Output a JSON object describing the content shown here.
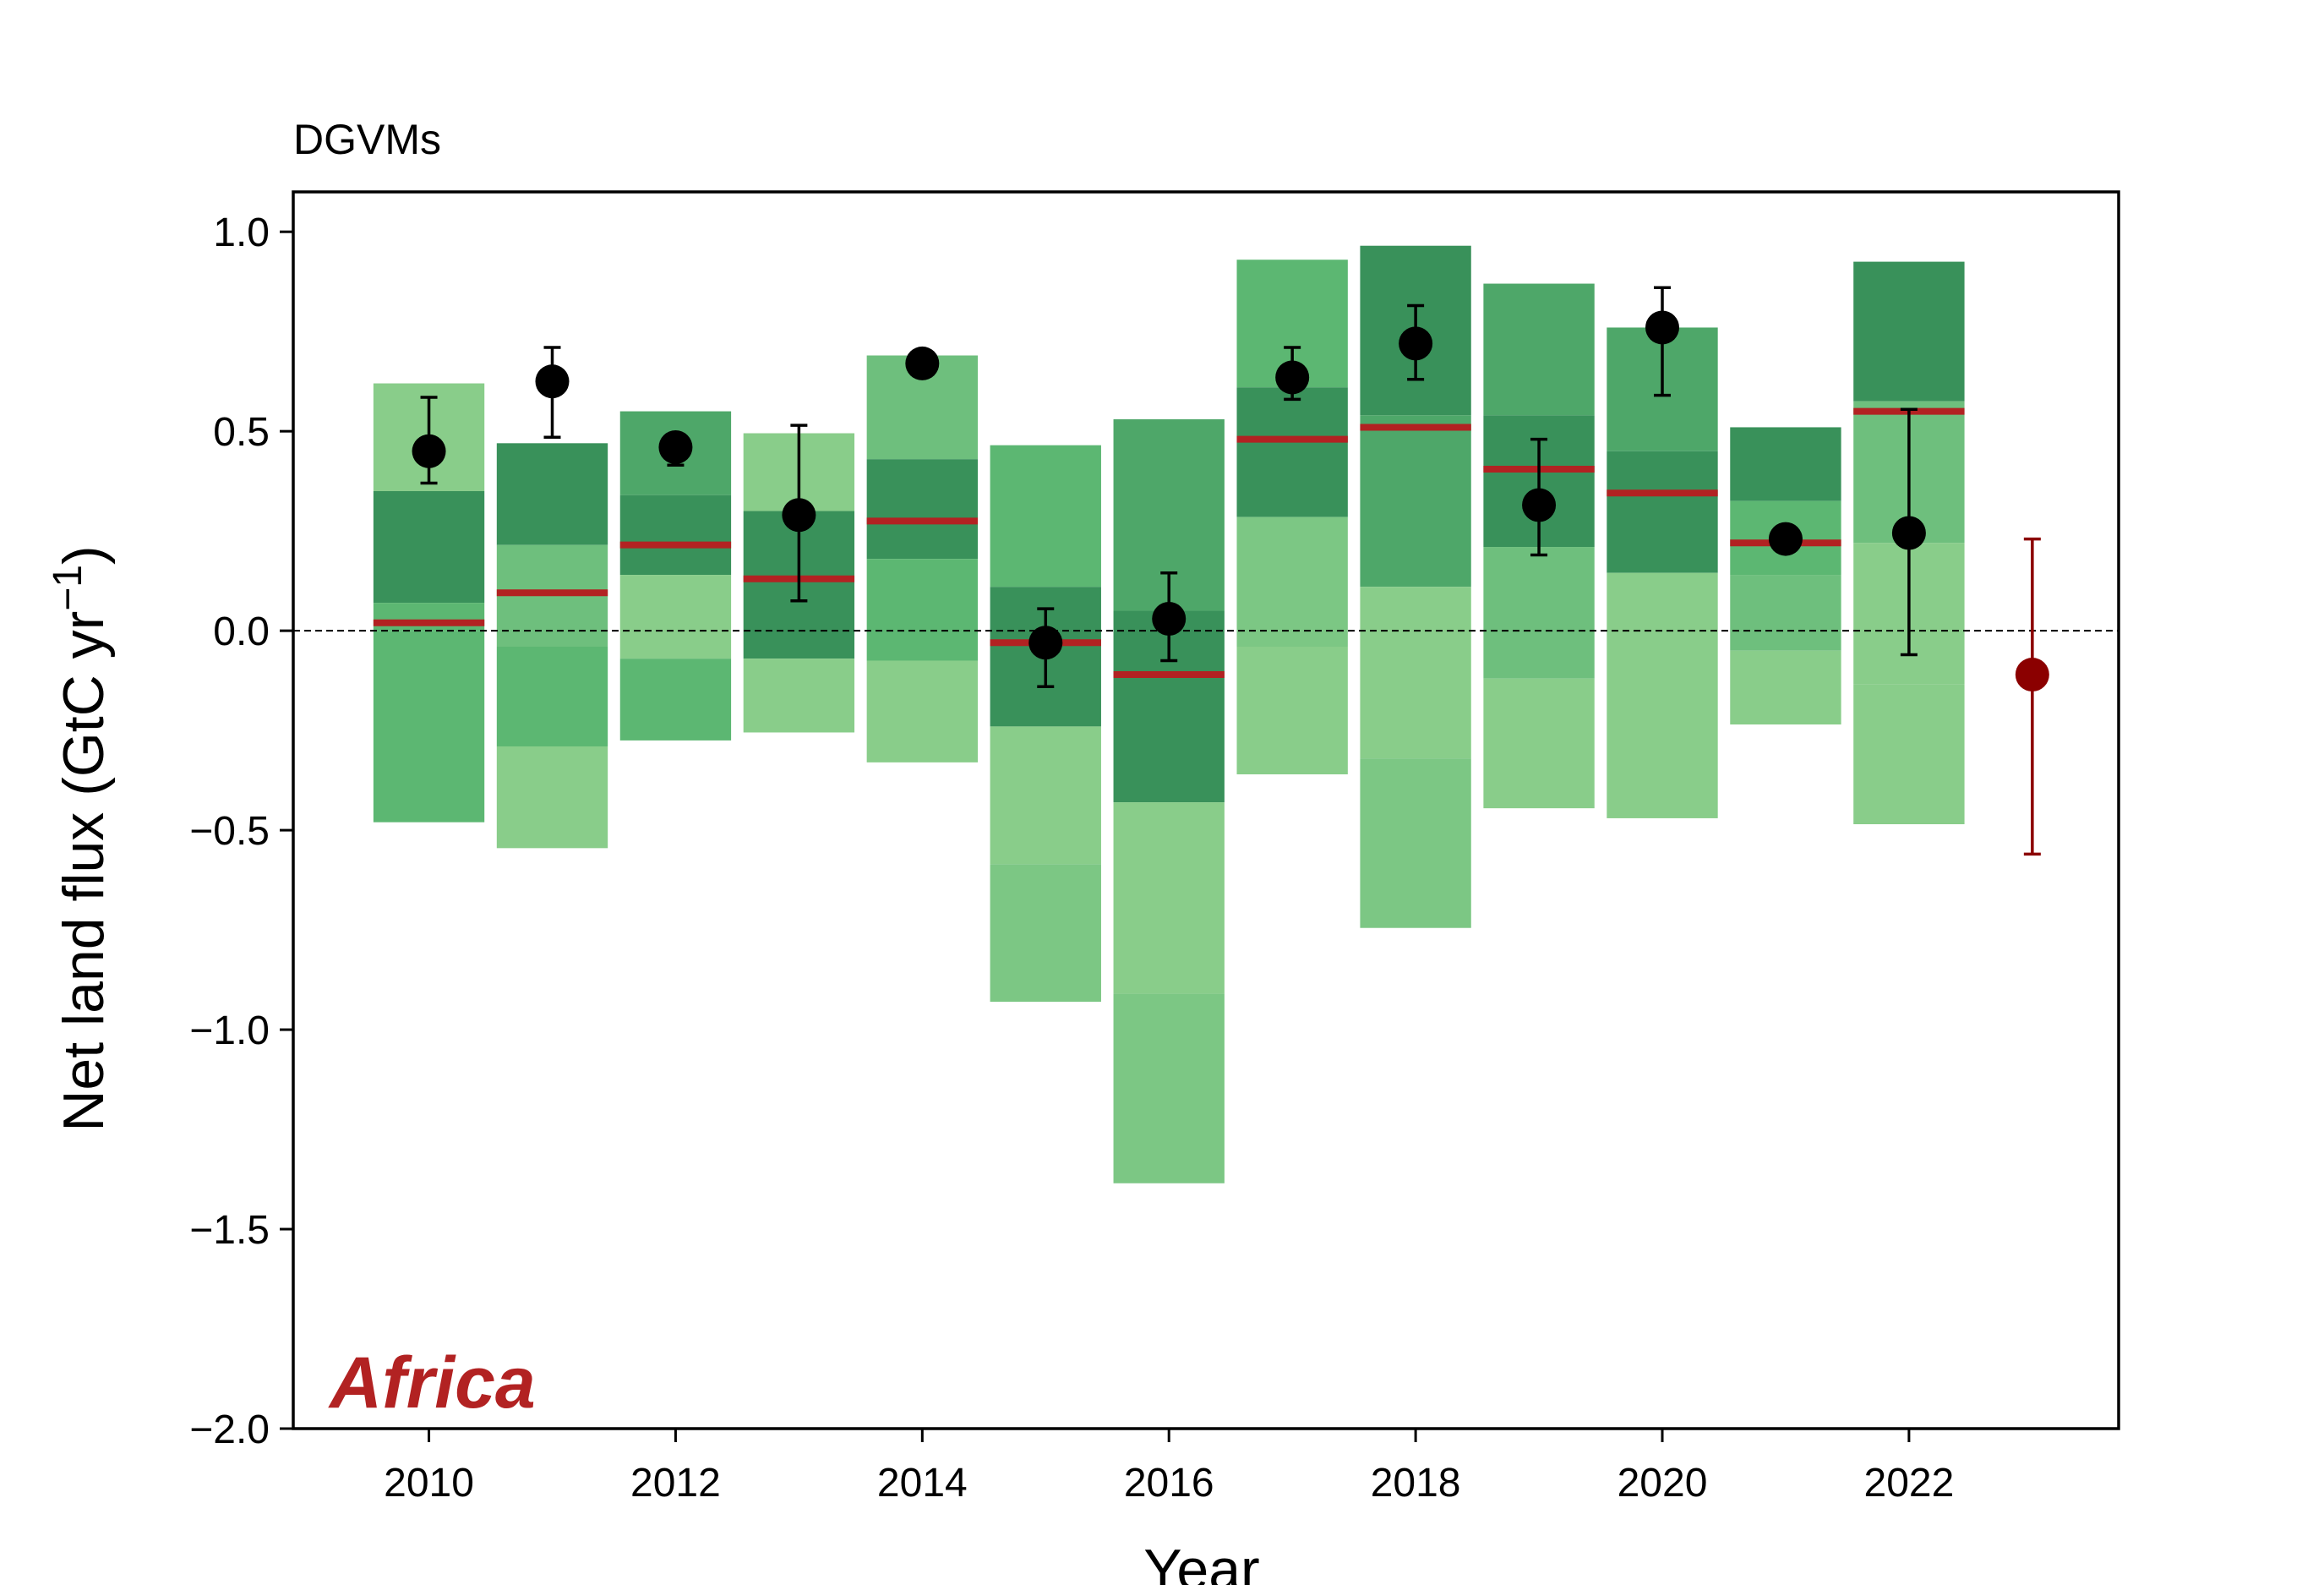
{
  "chart_data": {
    "type": "bar",
    "title": "DGVMs",
    "region_label": "Africa",
    "xlabel": "Year",
    "ylabel_main": "Net land flux (GtC yr",
    "ylabel_sup": "−1",
    "ylabel_close": ")",
    "xlim": [
      2008.9,
      2023.7
    ],
    "ylim": [
      -2.0,
      1.1
    ],
    "x_ticks": [
      2010,
      2012,
      2014,
      2016,
      2018,
      2020,
      2022
    ],
    "x_tick_labels": [
      "2010",
      "2012",
      "2014",
      "2016",
      "2018",
      "2020",
      "2022"
    ],
    "y_ticks": [
      1.0,
      0.5,
      0.0,
      -0.5,
      -1.0,
      -1.5,
      -2.0
    ],
    "y_tick_labels": [
      "1.0",
      "0.5",
      "0.0",
      "−0.5",
      "−1.0",
      "−1.5",
      "−2.0"
    ],
    "zero_line": true,
    "colors": {
      "segment_shades": [
        "#39915a",
        "#4ea769",
        "#5cb772",
        "#6ebf7d",
        "#89cd8a",
        "#7cc784"
      ],
      "median_line": "#b22222",
      "observation_marker": "#000000",
      "final_marker": "#8b0000",
      "region_label": "#b22222",
      "zero_line": "#000000"
    },
    "bars": [
      {
        "year": 2010,
        "median": 0.02,
        "segments": [
          {
            "from": 0.35,
            "to": 0.62,
            "shade": 4
          },
          {
            "from": 0.07,
            "to": 0.35,
            "shade": 0
          },
          {
            "from": 0.0,
            "to": 0.07,
            "shade": 2
          },
          {
            "from": -0.48,
            "to": 0.0,
            "shade": 2
          }
        ]
      },
      {
        "year": 2011,
        "median": 0.095,
        "segments": [
          {
            "from": 0.215,
            "to": 0.47,
            "shade": 0
          },
          {
            "from": -0.04,
            "to": 0.215,
            "shade": 3
          },
          {
            "from": -0.29,
            "to": -0.04,
            "shade": 2
          },
          {
            "from": -0.545,
            "to": -0.29,
            "shade": 4
          }
        ]
      },
      {
        "year": 2012,
        "median": 0.215,
        "segments": [
          {
            "from": 0.34,
            "to": 0.55,
            "shade": 1
          },
          {
            "from": 0.14,
            "to": 0.34,
            "shade": 0
          },
          {
            "from": -0.07,
            "to": 0.14,
            "shade": 4
          },
          {
            "from": -0.275,
            "to": -0.07,
            "shade": 2
          }
        ]
      },
      {
        "year": 2013,
        "median": 0.13,
        "segments": [
          {
            "from": 0.3,
            "to": 0.495,
            "shade": 4
          },
          {
            "from": -0.07,
            "to": 0.3,
            "shade": 0
          },
          {
            "from": -0.255,
            "to": -0.07,
            "shade": 4
          }
        ]
      },
      {
        "year": 2014,
        "median": 0.275,
        "segments": [
          {
            "from": 0.43,
            "to": 0.69,
            "shade": 3
          },
          {
            "from": 0.18,
            "to": 0.43,
            "shade": 0
          },
          {
            "from": -0.075,
            "to": 0.18,
            "shade": 2
          },
          {
            "from": -0.33,
            "to": -0.075,
            "shade": 4
          }
        ]
      },
      {
        "year": 2015,
        "median": -0.03,
        "segments": [
          {
            "from": 0.11,
            "to": 0.465,
            "shade": 2
          },
          {
            "from": -0.24,
            "to": 0.11,
            "shade": 0
          },
          {
            "from": -0.585,
            "to": -0.24,
            "shade": 4
          },
          {
            "from": -0.93,
            "to": -0.585,
            "shade": 5
          }
        ]
      },
      {
        "year": 2016,
        "median": -0.11,
        "segments": [
          {
            "from": 0.05,
            "to": 0.53,
            "shade": 1
          },
          {
            "from": -0.43,
            "to": 0.05,
            "shade": 0
          },
          {
            "from": -0.91,
            "to": -0.43,
            "shade": 4
          },
          {
            "from": -1.385,
            "to": -0.91,
            "shade": 5
          }
        ]
      },
      {
        "year": 2017,
        "median": 0.48,
        "segments": [
          {
            "from": 0.61,
            "to": 0.93,
            "shade": 2
          },
          {
            "from": 0.285,
            "to": 0.61,
            "shade": 0
          },
          {
            "from": -0.04,
            "to": 0.285,
            "shade": 5
          },
          {
            "from": -0.36,
            "to": -0.04,
            "shade": 4
          }
        ]
      },
      {
        "year": 2018,
        "median": 0.51,
        "segments": [
          {
            "from": 0.54,
            "to": 0.965,
            "shade": 0
          },
          {
            "from": 0.11,
            "to": 0.54,
            "shade": 1
          },
          {
            "from": -0.32,
            "to": 0.11,
            "shade": 4
          },
          {
            "from": -0.745,
            "to": -0.32,
            "shade": 5
          }
        ]
      },
      {
        "year": 2019,
        "median": 0.405,
        "segments": [
          {
            "from": 0.54,
            "to": 0.87,
            "shade": 1
          },
          {
            "from": 0.21,
            "to": 0.54,
            "shade": 0
          },
          {
            "from": -0.12,
            "to": 0.21,
            "shade": 3
          },
          {
            "from": -0.445,
            "to": -0.12,
            "shade": 4
          }
        ]
      },
      {
        "year": 2020,
        "median": 0.345,
        "segments": [
          {
            "from": 0.45,
            "to": 0.76,
            "shade": 1
          },
          {
            "from": 0.145,
            "to": 0.45,
            "shade": 0
          },
          {
            "from": -0.165,
            "to": 0.145,
            "shade": 4
          },
          {
            "from": -0.47,
            "to": -0.165,
            "shade": 4
          }
        ]
      },
      {
        "year": 2021,
        "median": 0.22,
        "segments": [
          {
            "from": 0.325,
            "to": 0.51,
            "shade": 0
          },
          {
            "from": 0.14,
            "to": 0.325,
            "shade": 2
          },
          {
            "from": -0.05,
            "to": 0.14,
            "shade": 3
          },
          {
            "from": -0.235,
            "to": -0.05,
            "shade": 4
          }
        ]
      },
      {
        "year": 2022,
        "median": 0.55,
        "segments": [
          {
            "from": 0.575,
            "to": 0.925,
            "shade": 0
          },
          {
            "from": 0.22,
            "to": 0.575,
            "shade": 3
          },
          {
            "from": -0.135,
            "to": 0.22,
            "shade": 4
          },
          {
            "from": -0.485,
            "to": -0.135,
            "shade": 4
          }
        ]
      }
    ],
    "observations": [
      {
        "year": 2010,
        "value": 0.45,
        "low": 0.37,
        "high": 0.585
      },
      {
        "year": 2011,
        "value": 0.625,
        "low": 0.485,
        "high": 0.71
      },
      {
        "year": 2012,
        "value": 0.46,
        "low": 0.415,
        "high": 0.49
      },
      {
        "year": 2013,
        "value": 0.29,
        "low": 0.075,
        "high": 0.515
      },
      {
        "year": 2014,
        "value": 0.67,
        "low": 0.67,
        "high": 0.67
      },
      {
        "year": 2015,
        "value": -0.03,
        "low": -0.14,
        "high": 0.055
      },
      {
        "year": 2016,
        "value": 0.03,
        "low": -0.075,
        "high": 0.145
      },
      {
        "year": 2017,
        "value": 0.635,
        "low": 0.58,
        "high": 0.71
      },
      {
        "year": 2018,
        "value": 0.72,
        "low": 0.63,
        "high": 0.815
      },
      {
        "year": 2019,
        "value": 0.315,
        "low": 0.19,
        "high": 0.48
      },
      {
        "year": 2020,
        "value": 0.76,
        "low": 0.59,
        "high": 0.86
      },
      {
        "year": 2021,
        "value": 0.23,
        "low": 0.23,
        "high": 0.23
      },
      {
        "year": 2022,
        "value": 0.245,
        "low": -0.06,
        "high": 0.555
      }
    ],
    "final_estimate": {
      "year": 2023,
      "value": -0.11,
      "low": -0.56,
      "high": 0.23
    }
  }
}
